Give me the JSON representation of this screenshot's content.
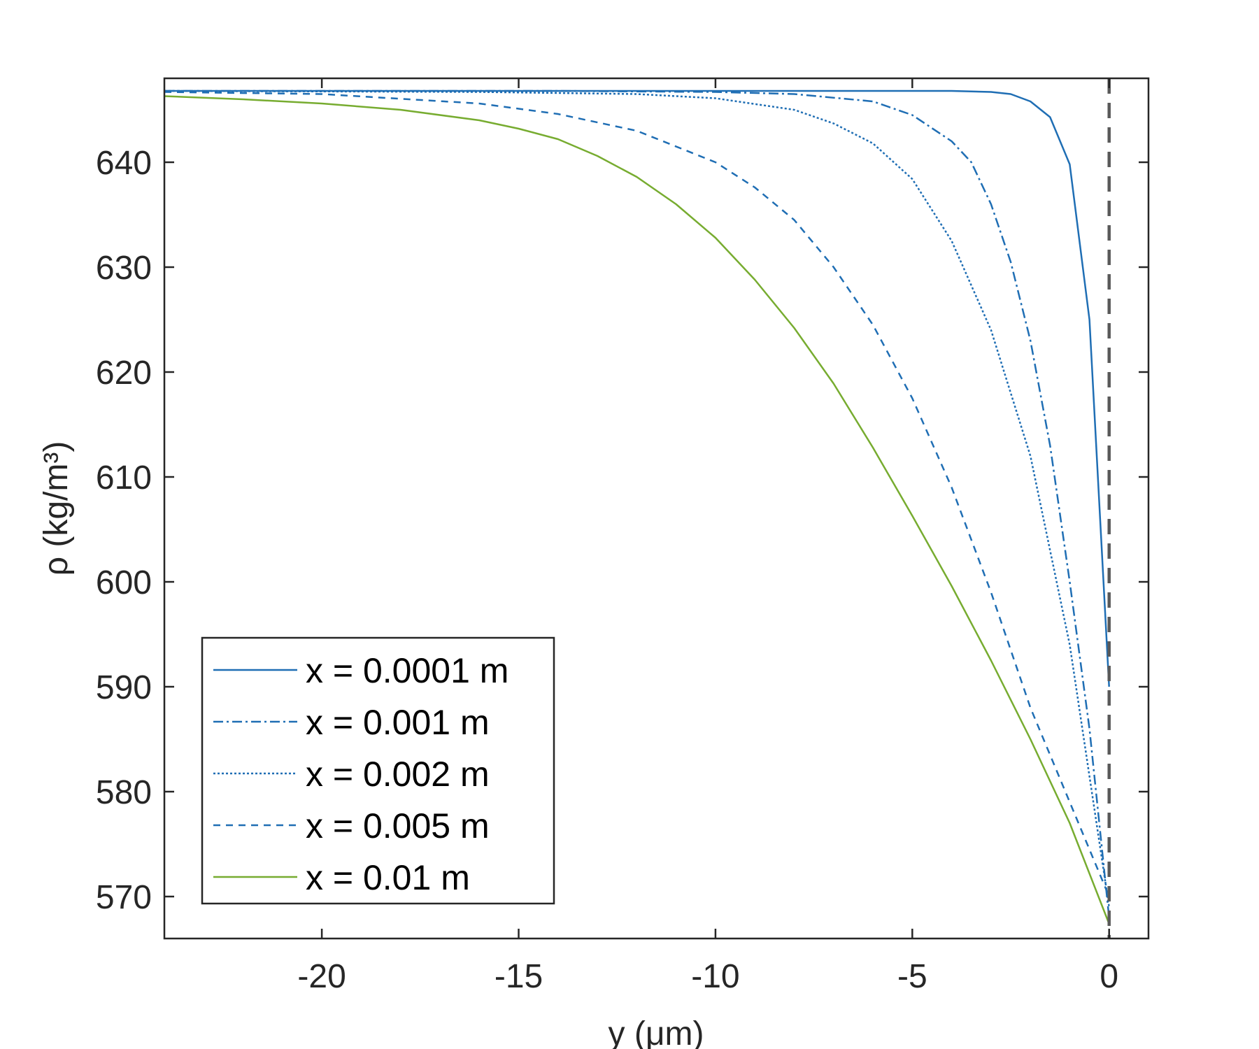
{
  "chart_data": {
    "type": "line",
    "xlabel": "y (μm)",
    "ylabel": "ρ (kg/m³)",
    "xlim": [
      -24,
      1
    ],
    "ylim": [
      566,
      648
    ],
    "xticks": [
      -20,
      -15,
      -10,
      -5,
      0
    ],
    "yticks": [
      570,
      580,
      590,
      600,
      610,
      620,
      630,
      640
    ],
    "xtick_labels": [
      "-20",
      "-15",
      "-10",
      "-5",
      "0"
    ],
    "ytick_labels": [
      "570",
      "580",
      "590",
      "600",
      "610",
      "620",
      "630",
      "640"
    ],
    "grid": false,
    "legend_position": "bottom-left",
    "reference_line": {
      "x": 0,
      "style": "dashed",
      "color": "#5a5a5a"
    },
    "series": [
      {
        "name": "x = 0.0001 m",
        "color": "#1f6eb4",
        "dash": "solid",
        "x": [
          -24,
          -12,
          -6,
          -4,
          -3,
          -2.5,
          -2,
          -1.5,
          -1,
          -0.5,
          0
        ],
        "y": [
          646.8,
          646.8,
          646.8,
          646.8,
          646.7,
          646.5,
          645.8,
          644.3,
          639.8,
          625,
          590
        ]
      },
      {
        "name": "x = 0.001 m",
        "color": "#1f6eb4",
        "dash": "dashdot",
        "x": [
          -24,
          -14,
          -10,
          -8,
          -6,
          -5,
          -4,
          -3.5,
          -3,
          -2.5,
          -2,
          -1.5,
          -1,
          -0.5,
          0
        ],
        "y": [
          646.8,
          646.8,
          646.7,
          646.5,
          645.8,
          644.5,
          642,
          640,
          636,
          630.5,
          623,
          613,
          600,
          586,
          568
        ]
      },
      {
        "name": "x = 0.002 m",
        "color": "#1f6eb4",
        "dash": "dotted",
        "x": [
          -24,
          -16,
          -12,
          -10,
          -8,
          -7,
          -6,
          -5,
          -4,
          -3,
          -2,
          -1,
          0
        ],
        "y": [
          646.8,
          646.7,
          646.5,
          646.1,
          645,
          643.7,
          641.8,
          638.4,
          632.5,
          624,
          612,
          594,
          569
        ]
      },
      {
        "name": "x = 0.005 m",
        "color": "#1f6eb4",
        "dash": "dashed",
        "x": [
          -24,
          -20,
          -16,
          -14,
          -12,
          -10,
          -9,
          -8,
          -7,
          -6,
          -5,
          -4,
          -3,
          -2,
          -1,
          0
        ],
        "y": [
          646.7,
          646.5,
          645.6,
          644.6,
          643,
          640,
          637.6,
          634.5,
          630,
          624.5,
          617.5,
          609,
          599,
          588,
          579,
          570
        ]
      },
      {
        "name": "x = 0.01 m",
        "color": "#77ac30",
        "dash": "solid",
        "x": [
          -24,
          -22,
          -20,
          -18,
          -16,
          -15,
          -14,
          -13,
          -12,
          -11,
          -10,
          -9,
          -8,
          -7,
          -6,
          -5,
          -4,
          -3,
          -2,
          -1,
          0
        ],
        "y": [
          646.3,
          646,
          645.6,
          645,
          644,
          643.2,
          642.2,
          640.6,
          638.6,
          636,
          632.8,
          628.8,
          624.2,
          618.9,
          612.8,
          606.3,
          599.6,
          592.5,
          585,
          577,
          567.4
        ]
      }
    ]
  }
}
